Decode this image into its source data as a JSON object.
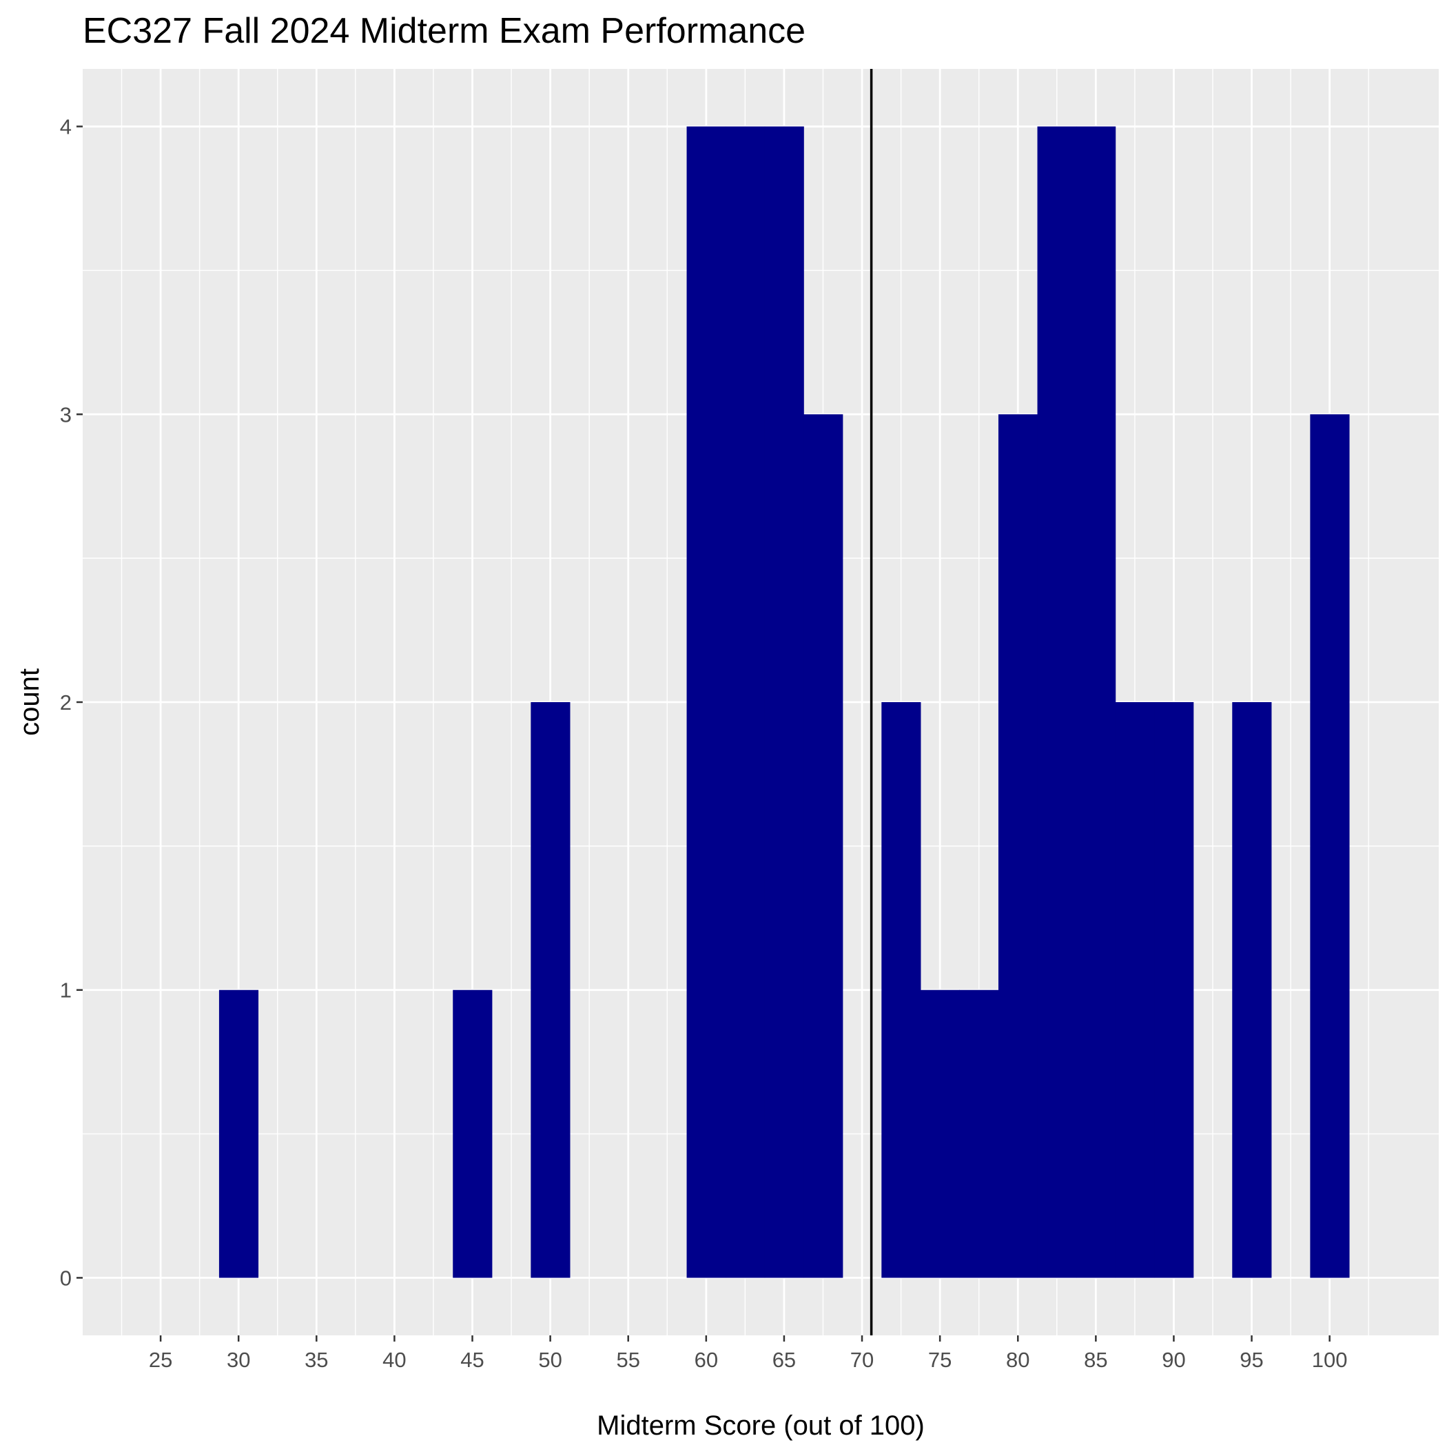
{
  "chart_data": {
    "type": "bar",
    "title": "EC327 Fall 2024 Midterm Exam Performance",
    "xlabel": "Midterm Score (out of 100)",
    "ylabel": "count",
    "xlim": [
      20,
      107
    ],
    "ylim": [
      -0.2,
      4.2
    ],
    "x_ticks": [
      25,
      30,
      35,
      40,
      45,
      50,
      55,
      60,
      65,
      70,
      75,
      80,
      85,
      90,
      95,
      100
    ],
    "y_ticks": [
      0,
      1,
      2,
      3,
      4
    ],
    "bin_width": 2.5,
    "bins": [
      {
        "x": 30,
        "count": 1
      },
      {
        "x": 45,
        "count": 1
      },
      {
        "x": 50,
        "count": 2
      },
      {
        "x": 60,
        "count": 4
      },
      {
        "x": 62.5,
        "count": 4
      },
      {
        "x": 65,
        "count": 4
      },
      {
        "x": 67.5,
        "count": 3
      },
      {
        "x": 72.5,
        "count": 2
      },
      {
        "x": 75,
        "count": 1
      },
      {
        "x": 77.5,
        "count": 1
      },
      {
        "x": 80,
        "count": 3
      },
      {
        "x": 82.5,
        "count": 4
      },
      {
        "x": 85,
        "count": 4
      },
      {
        "x": 87.5,
        "count": 2
      },
      {
        "x": 90,
        "count": 2
      },
      {
        "x": 95,
        "count": 2
      },
      {
        "x": 100,
        "count": 3
      }
    ],
    "reference_line_x": 70.6,
    "grid": true,
    "bar_color": "#00008B",
    "panel_color": "#EBEBEB",
    "grid_color": "#FFFFFF",
    "reference_line_color": "#000000"
  }
}
